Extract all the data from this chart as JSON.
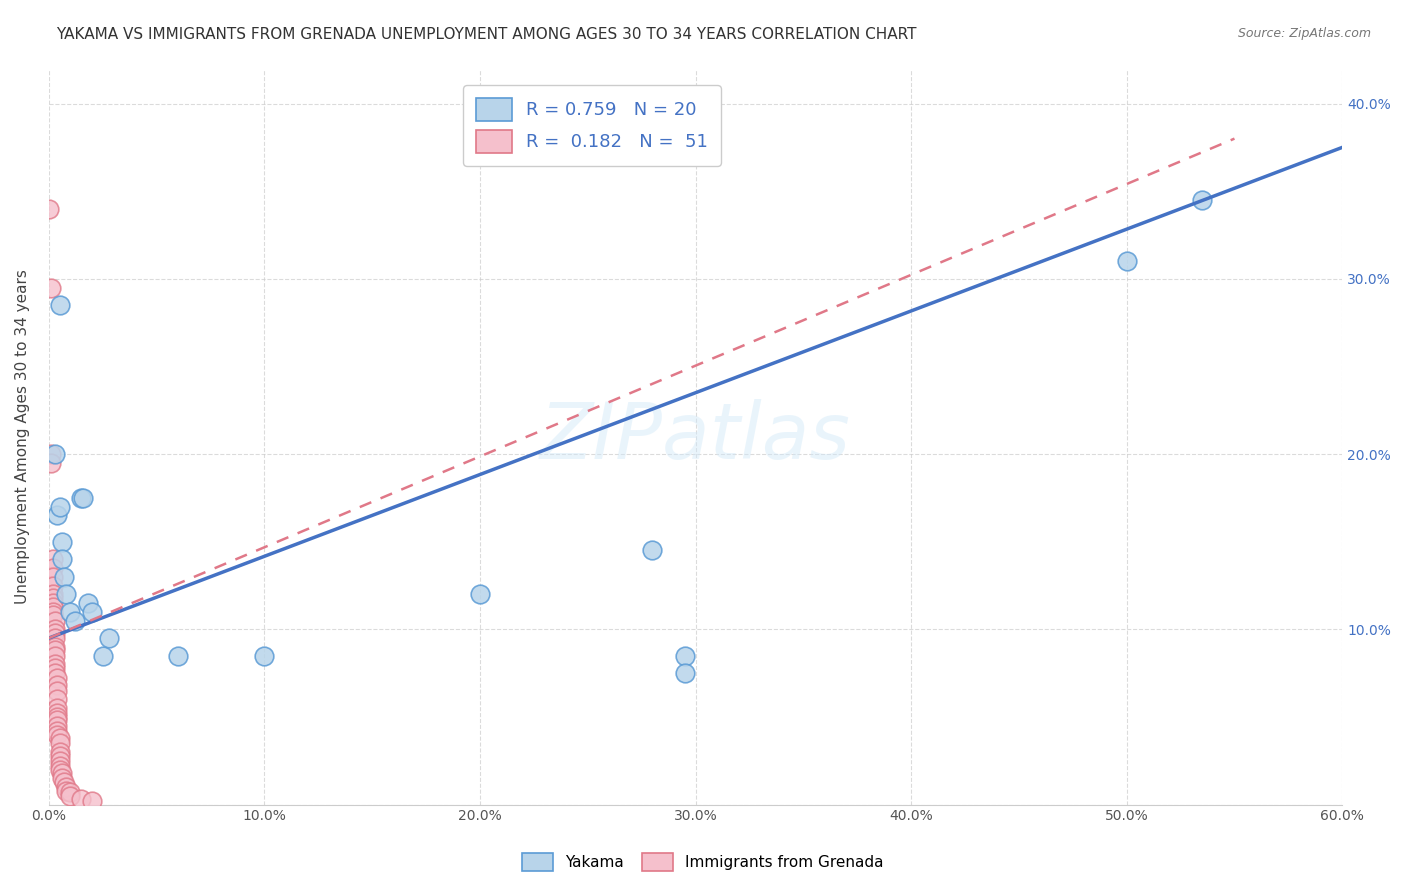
{
  "title": "YAKAMA VS IMMIGRANTS FROM GRENADA UNEMPLOYMENT AMONG AGES 30 TO 34 YEARS CORRELATION CHART",
  "source": "Source: ZipAtlas.com",
  "ylabel": "Unemployment Among Ages 30 to 34 years",
  "xlim": [
    0.0,
    0.6
  ],
  "ylim": [
    0.0,
    0.42
  ],
  "xticks": [
    0.0,
    0.1,
    0.2,
    0.3,
    0.4,
    0.5,
    0.6
  ],
  "yticks": [
    0.0,
    0.1,
    0.2,
    0.3,
    0.4
  ],
  "ytick_labels_right": [
    "",
    "10.0%",
    "20.0%",
    "30.0%",
    "40.0%"
  ],
  "xtick_labels": [
    "0.0%",
    "10.0%",
    "20.0%",
    "30.0%",
    "40.0%",
    "50.0%",
    "60.0%"
  ],
  "yakama_scatter": [
    [
      0.005,
      0.285
    ],
    [
      0.003,
      0.2
    ],
    [
      0.004,
      0.165
    ],
    [
      0.005,
      0.17
    ],
    [
      0.006,
      0.15
    ],
    [
      0.006,
      0.14
    ],
    [
      0.007,
      0.13
    ],
    [
      0.008,
      0.12
    ],
    [
      0.01,
      0.11
    ],
    [
      0.012,
      0.105
    ],
    [
      0.015,
      0.175
    ],
    [
      0.016,
      0.175
    ],
    [
      0.018,
      0.115
    ],
    [
      0.02,
      0.11
    ],
    [
      0.025,
      0.085
    ],
    [
      0.028,
      0.095
    ],
    [
      0.06,
      0.085
    ],
    [
      0.1,
      0.085
    ],
    [
      0.2,
      0.12
    ],
    [
      0.28,
      0.145
    ],
    [
      0.295,
      0.085
    ],
    [
      0.295,
      0.075
    ],
    [
      0.5,
      0.31
    ],
    [
      0.535,
      0.345
    ]
  ],
  "grenada_scatter": [
    [
      0.0,
      0.34
    ],
    [
      0.001,
      0.295
    ],
    [
      0.001,
      0.2
    ],
    [
      0.001,
      0.195
    ],
    [
      0.002,
      0.14
    ],
    [
      0.002,
      0.135
    ],
    [
      0.002,
      0.13
    ],
    [
      0.002,
      0.125
    ],
    [
      0.002,
      0.12
    ],
    [
      0.002,
      0.118
    ],
    [
      0.002,
      0.115
    ],
    [
      0.002,
      0.113
    ],
    [
      0.002,
      0.11
    ],
    [
      0.002,
      0.108
    ],
    [
      0.003,
      0.105
    ],
    [
      0.003,
      0.1
    ],
    [
      0.003,
      0.098
    ],
    [
      0.003,
      0.095
    ],
    [
      0.003,
      0.09
    ],
    [
      0.003,
      0.088
    ],
    [
      0.003,
      0.085
    ],
    [
      0.003,
      0.08
    ],
    [
      0.003,
      0.078
    ],
    [
      0.003,
      0.075
    ],
    [
      0.004,
      0.072
    ],
    [
      0.004,
      0.068
    ],
    [
      0.004,
      0.065
    ],
    [
      0.004,
      0.06
    ],
    [
      0.004,
      0.055
    ],
    [
      0.004,
      0.052
    ],
    [
      0.004,
      0.05
    ],
    [
      0.004,
      0.048
    ],
    [
      0.004,
      0.045
    ],
    [
      0.004,
      0.042
    ],
    [
      0.004,
      0.04
    ],
    [
      0.005,
      0.038
    ],
    [
      0.005,
      0.035
    ],
    [
      0.005,
      0.03
    ],
    [
      0.005,
      0.028
    ],
    [
      0.005,
      0.025
    ],
    [
      0.005,
      0.022
    ],
    [
      0.005,
      0.02
    ],
    [
      0.006,
      0.018
    ],
    [
      0.006,
      0.015
    ],
    [
      0.007,
      0.013
    ],
    [
      0.008,
      0.01
    ],
    [
      0.008,
      0.008
    ],
    [
      0.01,
      0.007
    ],
    [
      0.01,
      0.005
    ],
    [
      0.015,
      0.003
    ],
    [
      0.02,
      0.002
    ]
  ],
  "yakama_line_x": [
    0.0,
    0.6
  ],
  "yakama_line_y": [
    0.095,
    0.375
  ],
  "grenada_line_x": [
    0.0,
    0.55
  ],
  "grenada_line_y": [
    0.095,
    0.38
  ],
  "yakama_scatter_face": "#b8d4ea",
  "yakama_scatter_edge": "#5b9bd5",
  "grenada_scatter_face": "#f5c0cc",
  "grenada_scatter_edge": "#e07888",
  "yakama_line_color": "#4472c4",
  "grenada_line_color": "#e07888",
  "right_axis_color": "#4472c4",
  "watermark": "ZIPatlas",
  "background_color": "#ffffff",
  "grid_color": "#cccccc",
  "title_fontsize": 11,
  "axis_label_fontsize": 11,
  "tick_fontsize": 10
}
